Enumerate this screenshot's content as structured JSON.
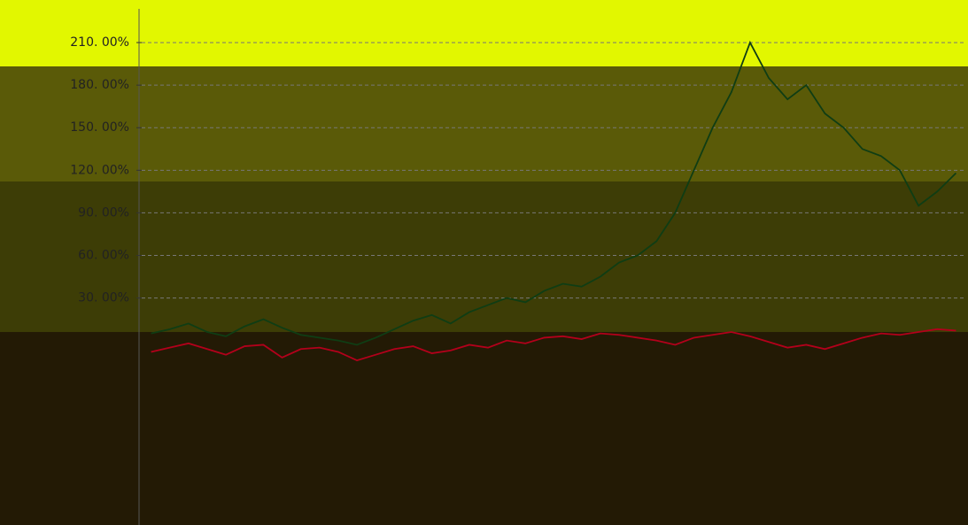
{
  "chart_data": {
    "type": "line",
    "categories": [
      null,
      null,
      null,
      null,
      null,
      null,
      null,
      null,
      null,
      null,
      null,
      null,
      null,
      null,
      null,
      null,
      null,
      null,
      null,
      null,
      null,
      null,
      null,
      null,
      null,
      null,
      null,
      null,
      null,
      null,
      null,
      null,
      null,
      null,
      null,
      null,
      null,
      null,
      null,
      null,
      null,
      null,
      null,
      null
    ],
    "series": [
      {
        "color": "#0f3d14",
        "values": [
          5,
          8,
          12,
          6,
          3,
          10,
          15,
          9,
          4,
          2,
          0,
          -3,
          2,
          8,
          14,
          18,
          12,
          20,
          25,
          30,
          27,
          35,
          40,
          38,
          45,
          55,
          60,
          70,
          90,
          120,
          150,
          175,
          210,
          185,
          170,
          180,
          160,
          150,
          135,
          130,
          120,
          95,
          105,
          118
        ]
      },
      {
        "color": "#b3001b",
        "values": [
          -8,
          -5,
          -2,
          -6,
          -10,
          -4,
          -3,
          -12,
          -6,
          -5,
          -8,
          -14,
          -10,
          -6,
          -4,
          -9,
          -7,
          -3,
          -5,
          0,
          -2,
          2,
          3,
          1,
          5,
          4,
          2,
          0,
          -3,
          2,
          4,
          6,
          3,
          -1,
          -5,
          -3,
          -6,
          -2,
          2,
          5,
          4,
          6,
          8,
          7
        ]
      }
    ],
    "ylim": [
      -130,
      240
    ],
    "yticks": [
      {
        "value": 30,
        "label": "30. 00%"
      },
      {
        "value": 60,
        "label": "60. 00%"
      },
      {
        "value": 90,
        "label": "90. 00%"
      },
      {
        "value": 120,
        "label": "120. 00%"
      },
      {
        "value": 150,
        "label": "150. 00%"
      },
      {
        "value": 180,
        "label": "180. 00%"
      },
      {
        "value": 210,
        "label": "210. 00%"
      }
    ],
    "grid": true
  }
}
